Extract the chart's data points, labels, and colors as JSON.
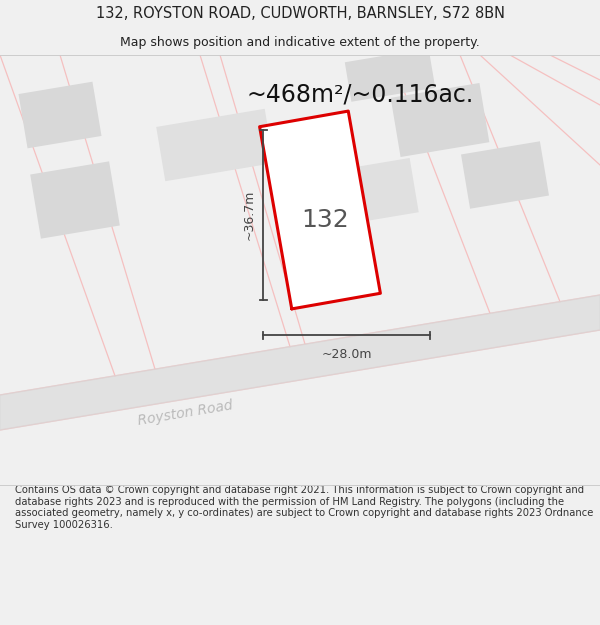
{
  "title_line1": "132, ROYSTON ROAD, CUDWORTH, BARNSLEY, S72 8BN",
  "title_line2": "Map shows position and indicative extent of the property.",
  "area_text": "~468m²/~0.116ac.",
  "number_label": "132",
  "road_label": "Royston Road",
  "dim_h": "~36.7m",
  "dim_w": "~28.0m",
  "footer_text": "Contains OS data © Crown copyright and database right 2021. This information is subject to Crown copyright and database rights 2023 and is reproduced with the permission of HM Land Registry. The polygons (including the associated geometry, namely x, y co-ordinates) are subject to Crown copyright and database rights 2023 Ordnance Survey 100026316.",
  "bg_color": "#f0f0f0",
  "map_bg": "#ffffff",
  "building_fill": "#d8d8d8",
  "building_edge": "#c0c0c0",
  "plot_stroke": "#dd0000",
  "plot_fill": "#ffffff",
  "line_color": "#444444",
  "road_text_color": "#bbbbbb",
  "faint_line_color": "#f5c0c0",
  "gray_road_color": "#d8d8d8",
  "title_color": "#222222",
  "footer_color": "#333333",
  "area_color": "#111111"
}
